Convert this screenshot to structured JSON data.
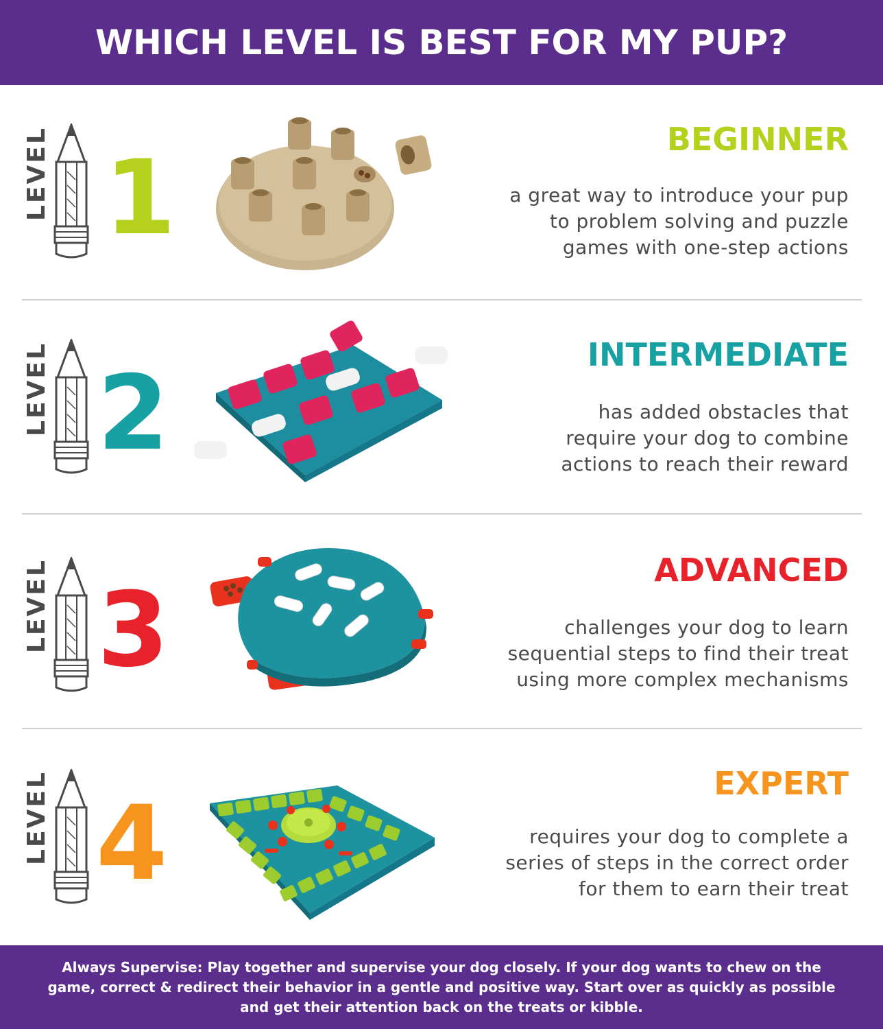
{
  "header": {
    "title": "WHICH LEVEL IS BEST FOR MY PUP?"
  },
  "colors": {
    "purple": "#5b2d8c",
    "beginner": "#b5d01d",
    "intermediate": "#17a1a3",
    "advanced": "#e8222a",
    "expert": "#f7941d",
    "text_gray": "#4a4a4a"
  },
  "levels": [
    {
      "level_word": "LEVEL",
      "number": "1",
      "title": "BEGINNER",
      "description": "a great way to introduce your pup to problem solving and puzzle games with one-step actions",
      "lines": [
        "a great way to introduce your pup",
        "to problem solving and puzzle",
        "games with one-step actions"
      ],
      "product_icon": "round-beige-puzzle-icon"
    },
    {
      "level_word": "LEVEL",
      "number": "2",
      "title": "INTERMEDIATE",
      "lines": [
        "has added obstacles that",
        "require your dog to combine",
        "actions to reach their reward"
      ],
      "product_icon": "teal-pink-brick-puzzle-icon"
    },
    {
      "level_word": "LEVEL",
      "number": "3",
      "title": "ADVANCED",
      "lines": [
        "challenges your dog to learn",
        "sequential steps to find their treat",
        "using more complex mechanisms"
      ],
      "product_icon": "teal-bone-casino-puzzle-icon"
    },
    {
      "level_word": "LEVEL",
      "number": "4",
      "title": "EXPERT",
      "lines": [
        "requires your dog to complete a",
        "series of steps in the correct order",
        "for them to earn their treat"
      ],
      "product_icon": "teal-green-multipuzzle-icon"
    }
  ],
  "footer": {
    "line1": "Always Supervise: Play together and supervise your dog closely. If your dog wants to chew on the",
    "line2": "game, correct & redirect their behavior in a gentle and positive way. Start over as quickly as possible",
    "line3": "and get their attention back on the treats or kibble."
  }
}
